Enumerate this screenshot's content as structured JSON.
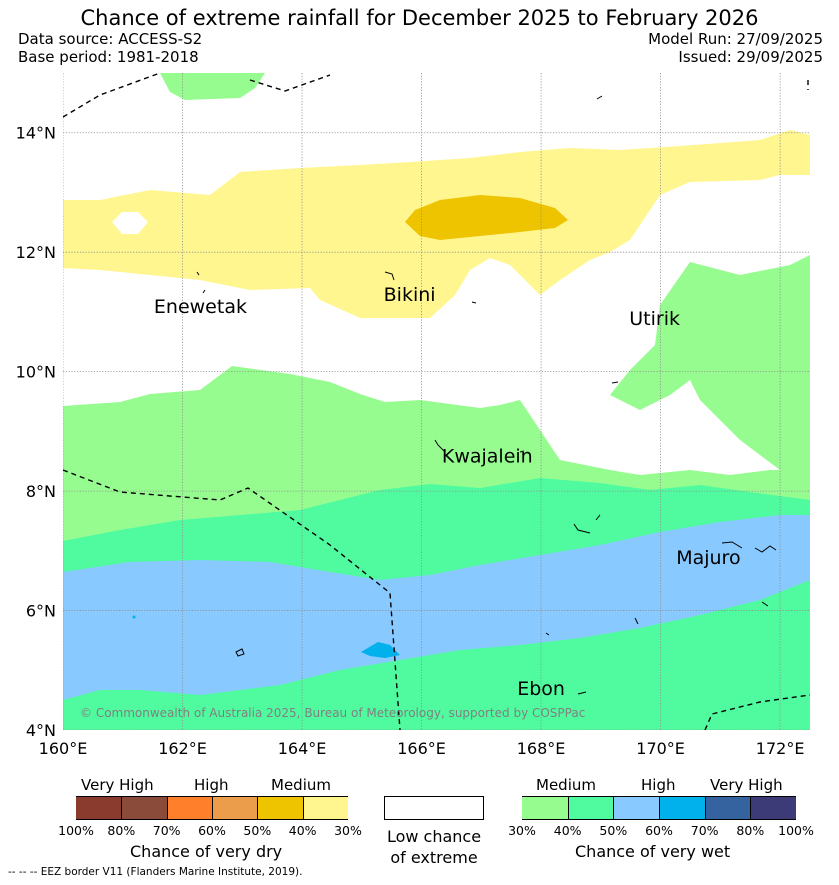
{
  "title": "Chance of extreme rainfall for December 2025 to February 2026",
  "header": {
    "data_source": "Data source: ACCESS-S2",
    "base_period": "Base period: 1981-2018",
    "model_run": "Model Run: 27/09/2025",
    "issued": "Issued: 29/09/2025"
  },
  "colors": {
    "very_dry": [
      "#8b3a2e",
      "#8b4b3b",
      "#ff7f2a",
      "#eb9d4b",
      "#eec400",
      "#fff68f"
    ],
    "very_wet": [
      "#97fc90",
      "#50fb9f",
      "#88c9ff",
      "#00b1ec",
      "#3563a0",
      "#3d3a78"
    ],
    "low_chance": "#ffffff"
  },
  "map": {
    "lon_range": [
      160,
      172.5
    ],
    "lat_range": [
      4,
      15
    ],
    "x_ticks": [
      "160°E",
      "162°E",
      "164°E",
      "166°E",
      "168°E",
      "170°E",
      "172°E"
    ],
    "y_ticks": [
      "4°N",
      "6°N",
      "8°N",
      "10°N",
      "12°N",
      "14°N"
    ],
    "places": [
      {
        "name": "Enewetak",
        "lon": 162.3,
        "lat": 11.1
      },
      {
        "name": "Bikini",
        "lon": 165.8,
        "lat": 11.3
      },
      {
        "name": "Utirik",
        "lon": 169.9,
        "lat": 10.9
      },
      {
        "name": "Kwajalein",
        "lon": 167.1,
        "lat": 8.6
      },
      {
        "name": "Majuro",
        "lon": 170.8,
        "lat": 6.9
      },
      {
        "name": "Ebon",
        "lon": 168.0,
        "lat": 4.7
      }
    ],
    "copyright": "© Commonwealth of Australia 2025, Bureau of Meteorology, supported by COSPPac"
  },
  "legend_dry": {
    "categories": [
      "Very High",
      "High",
      "Medium"
    ],
    "ticks": [
      "100%",
      "80%",
      "70%",
      "60%",
      "50%",
      "40%",
      "30%"
    ],
    "title": "Chance of very dry"
  },
  "legend_low": {
    "line1": "Low chance",
    "line2": "of extreme"
  },
  "legend_wet": {
    "categories": [
      "Medium",
      "High",
      "Very High"
    ],
    "ticks": [
      "30%",
      "40%",
      "50%",
      "60%",
      "70%",
      "80%",
      "100%"
    ],
    "title": "Chance of very wet"
  },
  "footer": "-- -- -- EEZ border V11 (Flanders Marine Institute, 2019)."
}
